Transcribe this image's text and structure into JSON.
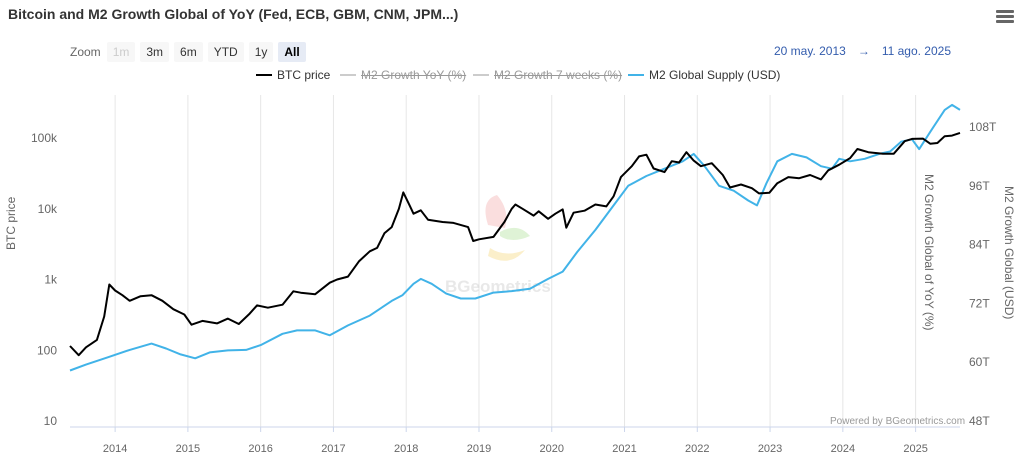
{
  "header": {
    "title": "Bitcoin and M2 Growth Global of YoY (Fed, ECB, GBM, CNM, JPM...)"
  },
  "zoom": {
    "label": "Zoom",
    "buttons": [
      {
        "label": "1m",
        "state": "disabled"
      },
      {
        "label": "3m",
        "state": "normal"
      },
      {
        "label": "6m",
        "state": "normal"
      },
      {
        "label": "YTD",
        "state": "normal"
      },
      {
        "label": "1y",
        "state": "normal"
      },
      {
        "label": "All",
        "state": "active"
      }
    ]
  },
  "range": {
    "from": "20 may. 2013",
    "arrow": "→",
    "to": "11 ago. 2025"
  },
  "legend": [
    {
      "label": "BTC price",
      "color": "#000000",
      "visible": true
    },
    {
      "label": "M2 Growth YoY (%)",
      "color": "#cccccc",
      "visible": false
    },
    {
      "label": "M2 Growth 7 weeks (%)",
      "color": "#cccccc",
      "visible": false
    },
    {
      "label": "M2 Global Supply (USD)",
      "color": "#41b3e8",
      "visible": true
    }
  ],
  "watermark": "BGeometrics",
  "credits": "Powered by BGeometrics.com",
  "menu_icon": "hamburger-menu-icon",
  "chart_data": {
    "type": "line",
    "title": "Bitcoin and M2 Growth Global of YoY (Fed, ECB, GBM, CNM, JPM...)",
    "x_ticks": [
      "2014",
      "2015",
      "2016",
      "2017",
      "2018",
      "2019",
      "2020",
      "2021",
      "2022",
      "2023",
      "2024",
      "2025"
    ],
    "x_range": [
      2013.38,
      2025.61
    ],
    "y_left": {
      "label": "BTC price",
      "scale": "log",
      "range": [
        10,
        150000
      ],
      "ticks": [
        "10",
        "100",
        "1k",
        "10k",
        "100k"
      ]
    },
    "y_right_1": {
      "label": "M2 Growth Global of YoY (%)",
      "ticks": []
    },
    "y_right_2": {
      "label": "M2 Growth Global (USD)",
      "range": [
        48,
        116
      ],
      "ticks": [
        "48T",
        "60T",
        "72T",
        "84T",
        "96T",
        "108T"
      ]
    },
    "series": [
      {
        "name": "BTC price",
        "color": "#000000",
        "axis": "left",
        "points": [
          [
            2013.38,
            115
          ],
          [
            2013.5,
            85
          ],
          [
            2013.6,
            110
          ],
          [
            2013.75,
            140
          ],
          [
            2013.85,
            300
          ],
          [
            2013.92,
            850
          ],
          [
            2014.0,
            700
          ],
          [
            2014.1,
            600
          ],
          [
            2014.2,
            500
          ],
          [
            2014.35,
            580
          ],
          [
            2014.5,
            600
          ],
          [
            2014.65,
            500
          ],
          [
            2014.8,
            380
          ],
          [
            2014.95,
            320
          ],
          [
            2015.05,
            230
          ],
          [
            2015.2,
            260
          ],
          [
            2015.4,
            240
          ],
          [
            2015.55,
            280
          ],
          [
            2015.7,
            235
          ],
          [
            2015.85,
            330
          ],
          [
            2015.95,
            430
          ],
          [
            2016.1,
            400
          ],
          [
            2016.3,
            440
          ],
          [
            2016.45,
            680
          ],
          [
            2016.55,
            650
          ],
          [
            2016.75,
            620
          ],
          [
            2016.95,
            900
          ],
          [
            2017.05,
            1000
          ],
          [
            2017.2,
            1100
          ],
          [
            2017.35,
            1800
          ],
          [
            2017.5,
            2500
          ],
          [
            2017.6,
            2800
          ],
          [
            2017.7,
            4500
          ],
          [
            2017.8,
            5500
          ],
          [
            2017.9,
            10000
          ],
          [
            2017.96,
            17000
          ],
          [
            2018.05,
            11000
          ],
          [
            2018.1,
            8500
          ],
          [
            2018.2,
            9500
          ],
          [
            2018.3,
            7000
          ],
          [
            2018.5,
            6500
          ],
          [
            2018.65,
            6300
          ],
          [
            2018.85,
            5500
          ],
          [
            2018.92,
            3500
          ],
          [
            2019.0,
            3700
          ],
          [
            2019.2,
            4000
          ],
          [
            2019.35,
            6500
          ],
          [
            2019.45,
            10000
          ],
          [
            2019.5,
            11500
          ],
          [
            2019.6,
            10000
          ],
          [
            2019.75,
            8000
          ],
          [
            2019.82,
            9200
          ],
          [
            2019.95,
            7200
          ],
          [
            2020.05,
            8500
          ],
          [
            2020.15,
            9800
          ],
          [
            2020.2,
            5400
          ],
          [
            2020.3,
            8800
          ],
          [
            2020.45,
            9400
          ],
          [
            2020.6,
            11500
          ],
          [
            2020.75,
            10800
          ],
          [
            2020.85,
            15000
          ],
          [
            2020.95,
            28000
          ],
          [
            2021.1,
            40000
          ],
          [
            2021.2,
            55000
          ],
          [
            2021.3,
            58000
          ],
          [
            2021.4,
            37000
          ],
          [
            2021.55,
            33000
          ],
          [
            2021.65,
            47000
          ],
          [
            2021.75,
            45000
          ],
          [
            2021.85,
            63000
          ],
          [
            2021.95,
            48000
          ],
          [
            2022.05,
            40000
          ],
          [
            2022.2,
            44000
          ],
          [
            2022.35,
            30000
          ],
          [
            2022.45,
            20000
          ],
          [
            2022.6,
            22000
          ],
          [
            2022.75,
            19500
          ],
          [
            2022.85,
            16500
          ],
          [
            2022.99,
            16800
          ],
          [
            2023.1,
            23000
          ],
          [
            2023.25,
            28000
          ],
          [
            2023.4,
            27000
          ],
          [
            2023.55,
            30000
          ],
          [
            2023.7,
            26000
          ],
          [
            2023.8,
            35000
          ],
          [
            2023.95,
            42000
          ],
          [
            2024.1,
            52000
          ],
          [
            2024.2,
            70000
          ],
          [
            2024.35,
            63000
          ],
          [
            2024.55,
            60000
          ],
          [
            2024.7,
            60000
          ],
          [
            2024.85,
            90000
          ],
          [
            2024.95,
            97000
          ],
          [
            2025.1,
            98000
          ],
          [
            2025.2,
            83000
          ],
          [
            2025.3,
            85000
          ],
          [
            2025.4,
            106000
          ],
          [
            2025.5,
            108000
          ],
          [
            2025.61,
            118000
          ]
        ]
      },
      {
        "name": "M2 Global Supply (USD)",
        "color": "#41b3e8",
        "axis": "right_2",
        "points": [
          [
            2013.38,
            58.3
          ],
          [
            2013.6,
            59.5
          ],
          [
            2013.9,
            61.0
          ],
          [
            2014.2,
            62.5
          ],
          [
            2014.5,
            63.8
          ],
          [
            2014.7,
            62.8
          ],
          [
            2014.9,
            61.6
          ],
          [
            2015.1,
            60.8
          ],
          [
            2015.3,
            62.0
          ],
          [
            2015.55,
            62.4
          ],
          [
            2015.8,
            62.5
          ],
          [
            2016.0,
            63.5
          ],
          [
            2016.3,
            65.8
          ],
          [
            2016.5,
            66.5
          ],
          [
            2016.75,
            66.5
          ],
          [
            2016.95,
            65.5
          ],
          [
            2017.2,
            67.5
          ],
          [
            2017.5,
            69.5
          ],
          [
            2017.8,
            72.5
          ],
          [
            2017.95,
            73.7
          ],
          [
            2018.1,
            76.0
          ],
          [
            2018.2,
            77.0
          ],
          [
            2018.35,
            76.0
          ],
          [
            2018.55,
            74.0
          ],
          [
            2018.75,
            73.0
          ],
          [
            2018.95,
            73.0
          ],
          [
            2019.2,
            74.2
          ],
          [
            2019.45,
            74.5
          ],
          [
            2019.7,
            75.0
          ],
          [
            2019.95,
            77.0
          ],
          [
            2020.15,
            78.5
          ],
          [
            2020.35,
            82.5
          ],
          [
            2020.6,
            87.0
          ],
          [
            2020.85,
            92.0
          ],
          [
            2021.05,
            96.0
          ],
          [
            2021.3,
            98.0
          ],
          [
            2021.55,
            99.5
          ],
          [
            2021.8,
            101.0
          ],
          [
            2021.95,
            102.5
          ],
          [
            2022.1,
            100.0
          ],
          [
            2022.3,
            96.0
          ],
          [
            2022.5,
            95.0
          ],
          [
            2022.7,
            93.0
          ],
          [
            2022.82,
            92.0
          ],
          [
            2022.95,
            96.5
          ],
          [
            2023.1,
            101.0
          ],
          [
            2023.3,
            102.5
          ],
          [
            2023.5,
            101.8
          ],
          [
            2023.7,
            100.0
          ],
          [
            2023.85,
            99.5
          ],
          [
            2023.95,
            101.5
          ],
          [
            2024.1,
            101.0
          ],
          [
            2024.3,
            101.5
          ],
          [
            2024.5,
            102.5
          ],
          [
            2024.65,
            103.0
          ],
          [
            2024.8,
            105.0
          ],
          [
            2024.95,
            105.5
          ],
          [
            2025.05,
            103.5
          ],
          [
            2025.2,
            107.0
          ],
          [
            2025.4,
            111.5
          ],
          [
            2025.5,
            112.5
          ],
          [
            2025.61,
            111.5
          ]
        ]
      }
    ],
    "legend_position": "top-center",
    "grid": "vertical"
  }
}
